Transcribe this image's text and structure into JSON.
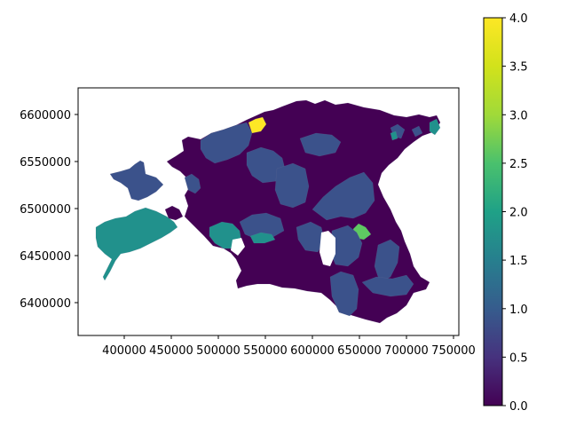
{
  "map": {
    "type": "choropleth",
    "region": "Estonia municipalities",
    "value_range": [
      0,
      4
    ],
    "colormap": "viridis",
    "x_ticks": [
      "400000",
      "450000",
      "500000",
      "550000",
      "600000",
      "650000",
      "700000",
      "750000"
    ],
    "y_ticks": [
      "6600000",
      "6550000",
      "6500000",
      "6450000",
      "6400000"
    ],
    "colorbar_ticks": [
      "0.0",
      "0.5",
      "1.0",
      "1.5",
      "2.0",
      "2.5",
      "3.0",
      "3.5",
      "4.0"
    ],
    "colors": {
      "v0": "#440154",
      "v1": "#3b528b",
      "v2": "#21918c",
      "v3": "#5ec962",
      "v4": "#fde725"
    }
  }
}
